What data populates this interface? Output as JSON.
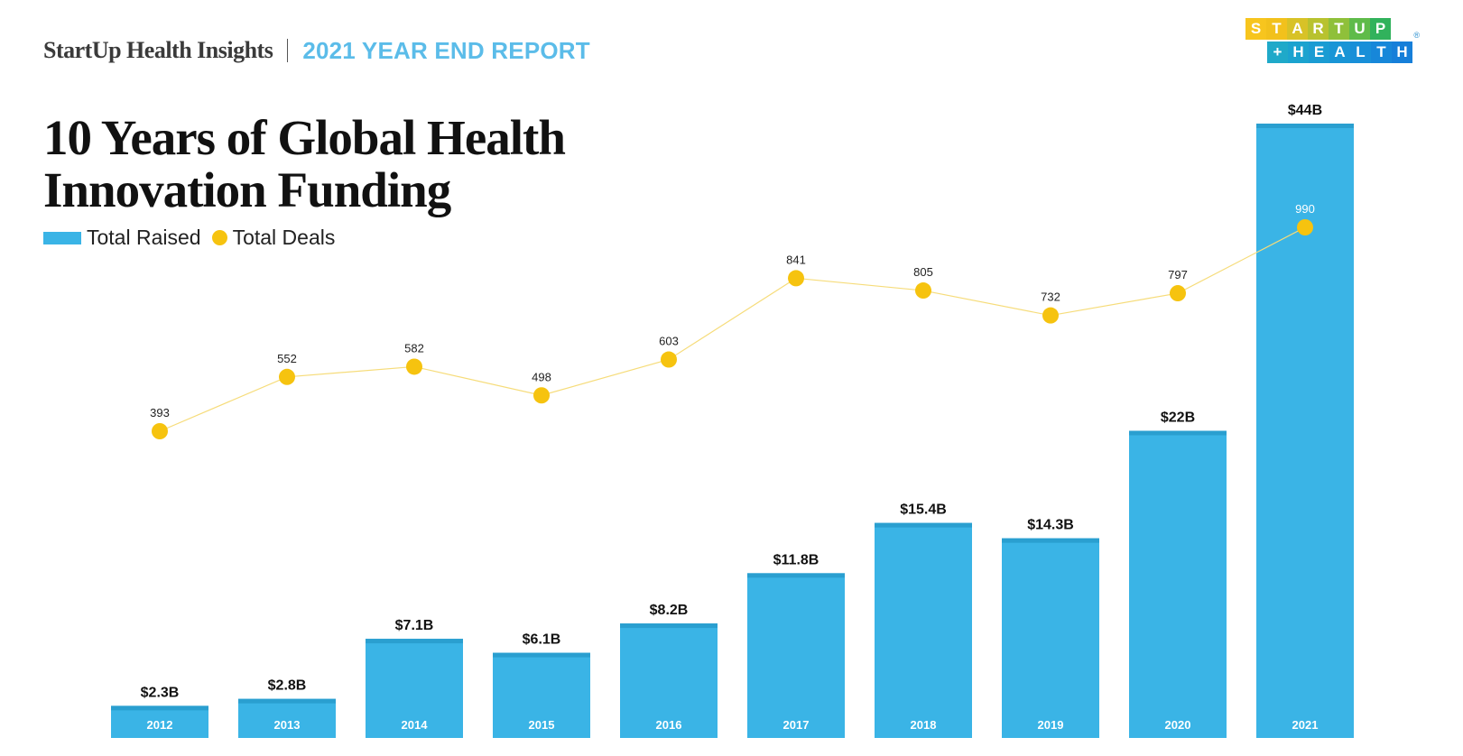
{
  "header": {
    "brand": "StartUp Health Insights",
    "report": "2021 YEAR END REPORT"
  },
  "logo": {
    "row1": [
      "S",
      "T",
      "A",
      "R",
      "T",
      "U",
      "P"
    ],
    "row2": [
      "+",
      "H",
      "E",
      "A",
      "L",
      "T",
      "H"
    ],
    "row1_colors": [
      "#f7c51e",
      "#f2c11c",
      "#d8c227",
      "#b8c22f",
      "#8fc03a",
      "#5fbb4a",
      "#31b25c"
    ],
    "row2_colors": [
      "#1fa9c9",
      "#1ba3cf",
      "#1a9cd3",
      "#1995d6",
      "#188fd8",
      "#1787d9",
      "#167fd9"
    ],
    "mark": "®"
  },
  "chart_data": {
    "type": "bar",
    "title": "10 Years of Global Health Innovation Funding",
    "legend": {
      "placement": "top-left",
      "bar_name": "Total Raised",
      "line_name": "Total Deals"
    },
    "categories": [
      "2012",
      "2013",
      "2014",
      "2015",
      "2016",
      "2017",
      "2018",
      "2019",
      "2020",
      "2021"
    ],
    "series": [
      {
        "name": "Total Raised",
        "kind": "bar",
        "color": "#3ab4e6",
        "values": [
          2.3,
          2.8,
          7.1,
          6.1,
          8.2,
          11.8,
          15.4,
          14.3,
          22,
          44
        ],
        "labels": [
          "$2.3B",
          "$2.8B",
          "$7.1B",
          "$6.1B",
          "$8.2B",
          "$11.8B",
          "$15.4B",
          "$14.3B",
          "$22B",
          "$44B"
        ]
      },
      {
        "name": "Total Deals",
        "kind": "line",
        "color": "#f6c30f",
        "values": [
          393,
          552,
          582,
          498,
          603,
          841,
          805,
          732,
          797,
          990
        ],
        "labels": [
          "393",
          "552",
          "582",
          "498",
          "603",
          "841",
          "805",
          "732",
          "797",
          "990"
        ]
      }
    ],
    "grid": false
  }
}
